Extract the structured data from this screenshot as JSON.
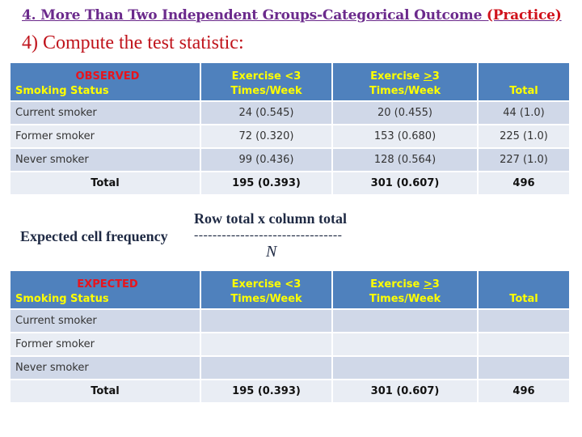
{
  "header": {
    "title_main": "4. More Than Two Independent Groups-Categorical Outcome ",
    "title_practice": "(Practice)",
    "step": "4) Compute the test statistic:"
  },
  "columns": {
    "col1": "Smoking Status",
    "col2_line1": "Exercise <3",
    "col2_line2": "Times/Week",
    "col3_line1_prefix": "Exercise ",
    "col3_line1_underlined": ">",
    "col3_line1_suffix": "3",
    "col3_line2": "Times/Week",
    "col4": "Total"
  },
  "observed": {
    "label": "OBSERVED",
    "rows": [
      {
        "status": "Current smoker",
        "lt3": "24 (0.545)",
        "ge3": "20 (0.455)",
        "total": "44 (1.0)"
      },
      {
        "status": "Former smoker",
        "lt3": "72 (0.320)",
        "ge3": "153 (0.680)",
        "total": "225 (1.0)"
      },
      {
        "status": "Never smoker",
        "lt3": "99 (0.436)",
        "ge3": "128 (0.564)",
        "total": "227 (1.0)"
      }
    ],
    "total_row": {
      "label": "Total",
      "lt3": "195 (0.393)",
      "ge3": "301 (0.607)",
      "total": "496"
    }
  },
  "formula": {
    "label": "Expected cell frequency",
    "numerator": "Row total x column total",
    "line": "--------------------------------",
    "denominator": "N"
  },
  "expected": {
    "label": "EXPECTED",
    "rows": [
      {
        "status": "Current smoker",
        "lt3": "",
        "ge3": "",
        "total": ""
      },
      {
        "status": "Former smoker",
        "lt3": "",
        "ge3": "",
        "total": ""
      },
      {
        "status": "Never smoker",
        "lt3": "",
        "ge3": "",
        "total": ""
      }
    ],
    "total_row": {
      "label": "Total",
      "lt3": "195 (0.393)",
      "ge3": "301 (0.607)",
      "total": "496"
    }
  }
}
